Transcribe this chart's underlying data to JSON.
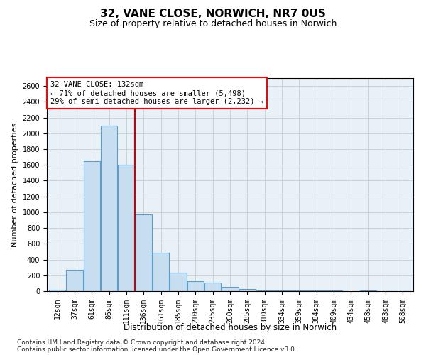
{
  "title": "32, VANE CLOSE, NORWICH, NR7 0US",
  "subtitle": "Size of property relative to detached houses in Norwich",
  "xlabel": "Distribution of detached houses by size in Norwich",
  "ylabel": "Number of detached properties",
  "footnote1": "Contains HM Land Registry data © Crown copyright and database right 2024.",
  "footnote2": "Contains public sector information licensed under the Open Government Licence v3.0.",
  "annotation_line1": "32 VANE CLOSE: 132sqm",
  "annotation_line2": "← 71% of detached houses are smaller (5,498)",
  "annotation_line3": "29% of semi-detached houses are larger (2,232) →",
  "bar_categories": [
    "12sqm",
    "37sqm",
    "61sqm",
    "86sqm",
    "111sqm",
    "136sqm",
    "161sqm",
    "185sqm",
    "210sqm",
    "235sqm",
    "260sqm",
    "285sqm",
    "310sqm",
    "334sqm",
    "359sqm",
    "384sqm",
    "409sqm",
    "434sqm",
    "458sqm",
    "483sqm",
    "508sqm"
  ],
  "bar_values": [
    20,
    270,
    1650,
    2100,
    1600,
    970,
    490,
    230,
    130,
    110,
    50,
    30,
    10,
    10,
    5,
    10,
    5,
    3,
    5,
    3,
    3
  ],
  "bar_edge_color": "#5a9ec9",
  "bar_fill_color": "#c7ddf0",
  "vline_color": "#cc0000",
  "vline_position": 4.5,
  "ylim": [
    0,
    2700
  ],
  "yticks": [
    0,
    200,
    400,
    600,
    800,
    1000,
    1200,
    1400,
    1600,
    1800,
    2000,
    2200,
    2400,
    2600
  ],
  "grid_color": "#cccccc",
  "bg_color": "#e8f0f8",
  "title_fontsize": 11,
  "subtitle_fontsize": 9,
  "axis_label_fontsize": 8,
  "tick_fontsize": 7,
  "annotation_fontsize": 7.5
}
